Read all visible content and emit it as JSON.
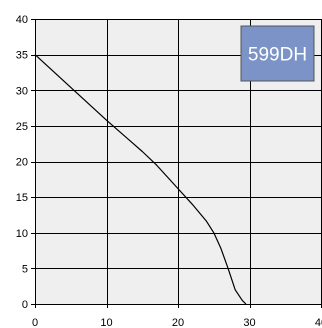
{
  "chart_data": {
    "type": "line",
    "title": "",
    "xlabel": "",
    "ylabel": "",
    "xlim": [
      0,
      40
    ],
    "ylim": [
      0,
      40
    ],
    "x_ticks": [
      0,
      10,
      20,
      30,
      40
    ],
    "y_ticks": [
      0,
      5,
      10,
      15,
      20,
      25,
      30,
      35,
      40
    ],
    "x_tick_labels": [
      "0",
      "10",
      "20",
      "30",
      "40"
    ],
    "y_tick_labels": [
      "0",
      "5",
      "10",
      "15",
      "20",
      "25",
      "30",
      "35",
      "40"
    ],
    "grid": true,
    "legend": {
      "text": "599DH",
      "placement": "top-right",
      "background": "#7b93c6"
    },
    "colors": {
      "plot_background": "#efefef",
      "grid": "#000000",
      "line": "#000000"
    },
    "series": [
      {
        "x": [
          0,
          5,
          10,
          15,
          17,
          20,
          22,
          24,
          25,
          26,
          27,
          28,
          29,
          29.5
        ],
        "y": [
          35,
          30.4,
          25.8,
          21.4,
          19.5,
          16.2,
          14.0,
          11.6,
          10.0,
          7.8,
          5.0,
          2.0,
          0.5,
          0
        ]
      }
    ]
  }
}
